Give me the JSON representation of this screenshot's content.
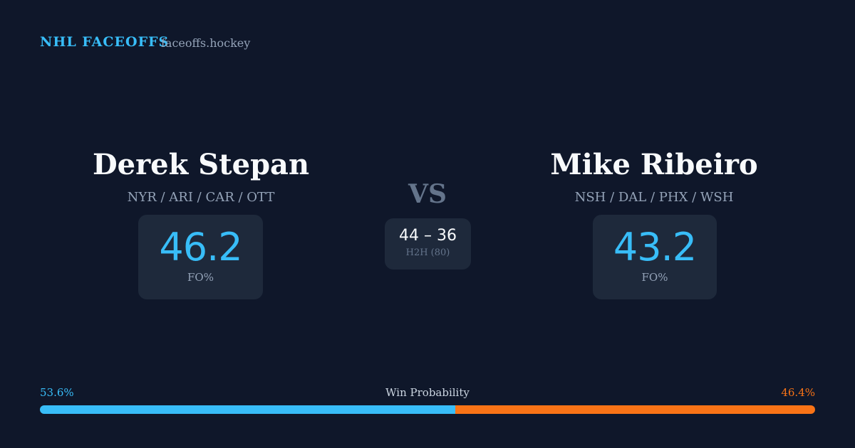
{
  "header": {
    "brand": "NHL FACEOFFS",
    "site": "faceoffs.hockey"
  },
  "players": [
    {
      "name": "Derek Stepan",
      "teams": "NYR / ARI / CAR / OTT",
      "fo_value": 46.2,
      "fo_label": "FO%"
    },
    {
      "name": "Mike Ribeiro",
      "teams": "NSH / DAL / PHX / WSH",
      "fo_value": 43.2,
      "fo_label": "FO%"
    }
  ],
  "versus": {
    "label": "VS",
    "score": "44 – 36",
    "h2h_label": "H2H (80)"
  },
  "win_probability": {
    "title": "Win Probability",
    "values": [
      53.6,
      46.4
    ],
    "value_labels": [
      "53.6%",
      "46.4%"
    ],
    "colors": [
      "#38bdf8",
      "#f97316"
    ]
  }
}
